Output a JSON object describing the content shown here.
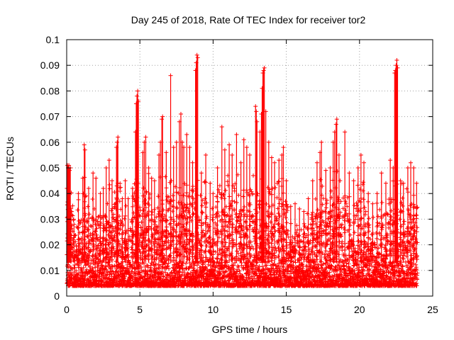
{
  "chart_data": {
    "type": "scatter",
    "title": "Day 245 of 2018, Rate Of TEC Index for receiver tor2",
    "xlabel": "GPS time / hours",
    "ylabel": "ROTI / TECUs",
    "xlim": [
      0,
      25
    ],
    "ylim": [
      0,
      0.1
    ],
    "xticks": [
      0,
      5,
      10,
      15,
      20,
      25
    ],
    "xtick_labels": [
      "0",
      "5",
      "10",
      "15",
      "20",
      "25"
    ],
    "yticks": [
      0,
      0.01,
      0.02,
      0.03,
      0.04,
      0.05,
      0.06,
      0.07,
      0.08,
      0.09,
      0.1
    ],
    "ytick_labels": [
      "0",
      "0.01",
      "0.02",
      "0.03",
      "0.04",
      "0.05",
      "0.06",
      "0.07",
      "0.08",
      "0.09",
      "0.1"
    ],
    "grid": true,
    "marker": "+",
    "color": "#ff0000",
    "series": [
      {
        "name": "ROTI",
        "points": [
          [
            0.05,
            0.051
          ],
          [
            0.1,
            0.05
          ],
          [
            0.15,
            0.051
          ],
          [
            0.2,
            0.049
          ],
          [
            0.25,
            0.05
          ],
          [
            0.3,
            0.033
          ],
          [
            0.5,
            0.028
          ],
          [
            0.8,
            0.04
          ],
          [
            1.1,
            0.046
          ],
          [
            1.2,
            0.059
          ],
          [
            1.25,
            0.057
          ],
          [
            1.5,
            0.042
          ],
          [
            1.8,
            0.048
          ],
          [
            2.0,
            0.046
          ],
          [
            2.3,
            0.04
          ],
          [
            2.5,
            0.042
          ],
          [
            2.7,
            0.05
          ],
          [
            2.9,
            0.053
          ],
          [
            3.1,
            0.045
          ],
          [
            3.4,
            0.058
          ],
          [
            3.45,
            0.06
          ],
          [
            3.5,
            0.062
          ],
          [
            3.8,
            0.038
          ],
          [
            4.0,
            0.045
          ],
          [
            4.2,
            0.038
          ],
          [
            4.5,
            0.042
          ],
          [
            4.7,
            0.064
          ],
          [
            4.75,
            0.075
          ],
          [
            4.8,
            0.078
          ],
          [
            4.85,
            0.08
          ],
          [
            4.9,
            0.076
          ],
          [
            5.2,
            0.056
          ],
          [
            5.3,
            0.06
          ],
          [
            5.4,
            0.062
          ],
          [
            5.6,
            0.05
          ],
          [
            5.8,
            0.046
          ],
          [
            6.0,
            0.045
          ],
          [
            6.3,
            0.055
          ],
          [
            6.4,
            0.06
          ],
          [
            6.5,
            0.069
          ],
          [
            6.55,
            0.07
          ],
          [
            6.8,
            0.056
          ],
          [
            7.1,
            0.086
          ],
          [
            7.3,
            0.058
          ],
          [
            7.5,
            0.06
          ],
          [
            7.7,
            0.068
          ],
          [
            7.8,
            0.071
          ],
          [
            7.9,
            0.06
          ],
          [
            8.0,
            0.058
          ],
          [
            8.2,
            0.063
          ],
          [
            8.4,
            0.058
          ],
          [
            8.6,
            0.052
          ],
          [
            8.8,
            0.088
          ],
          [
            8.85,
            0.091
          ],
          [
            8.9,
            0.094
          ],
          [
            8.95,
            0.093
          ],
          [
            9.2,
            0.048
          ],
          [
            9.5,
            0.055
          ],
          [
            9.8,
            0.044
          ],
          [
            10.0,
            0.04
          ],
          [
            10.3,
            0.05
          ],
          [
            10.6,
            0.066
          ],
          [
            10.8,
            0.057
          ],
          [
            11.1,
            0.059
          ],
          [
            11.3,
            0.055
          ],
          [
            11.6,
            0.063
          ],
          [
            11.9,
            0.052
          ],
          [
            12.1,
            0.061
          ],
          [
            12.3,
            0.058
          ],
          [
            12.5,
            0.055
          ],
          [
            12.9,
            0.074
          ],
          [
            12.95,
            0.072
          ],
          [
            13.0,
            0.068
          ],
          [
            13.2,
            0.064
          ],
          [
            13.3,
            0.071
          ],
          [
            13.35,
            0.081
          ],
          [
            13.4,
            0.087
          ],
          [
            13.45,
            0.088
          ],
          [
            13.5,
            0.089
          ],
          [
            13.6,
            0.072
          ],
          [
            13.8,
            0.06
          ],
          [
            14.0,
            0.054
          ],
          [
            14.2,
            0.052
          ],
          [
            14.5,
            0.053
          ],
          [
            14.7,
            0.055
          ],
          [
            14.8,
            0.058
          ],
          [
            15.0,
            0.045
          ],
          [
            15.3,
            0.035
          ],
          [
            15.6,
            0.036
          ],
          [
            15.9,
            0.034
          ],
          [
            16.2,
            0.033
          ],
          [
            16.5,
            0.038
          ],
          [
            16.8,
            0.045
          ],
          [
            17.1,
            0.052
          ],
          [
            17.3,
            0.056
          ],
          [
            17.4,
            0.06
          ],
          [
            17.7,
            0.049
          ],
          [
            18.0,
            0.05
          ],
          [
            18.2,
            0.06
          ],
          [
            18.3,
            0.064
          ],
          [
            18.4,
            0.067
          ],
          [
            18.45,
            0.069
          ],
          [
            18.6,
            0.055
          ],
          [
            19.0,
            0.064
          ],
          [
            19.3,
            0.048
          ],
          [
            19.6,
            0.045
          ],
          [
            19.9,
            0.05
          ],
          [
            20.1,
            0.055
          ],
          [
            20.3,
            0.052
          ],
          [
            20.6,
            0.04
          ],
          [
            20.9,
            0.036
          ],
          [
            21.2,
            0.04
          ],
          [
            21.5,
            0.048
          ],
          [
            21.8,
            0.044
          ],
          [
            22.1,
            0.053
          ],
          [
            22.3,
            0.05
          ],
          [
            22.4,
            0.087
          ],
          [
            22.45,
            0.088
          ],
          [
            22.5,
            0.09
          ],
          [
            22.55,
            0.092
          ],
          [
            22.6,
            0.089
          ],
          [
            22.8,
            0.045
          ],
          [
            23.0,
            0.044
          ],
          [
            23.3,
            0.05
          ],
          [
            23.5,
            0.052
          ],
          [
            23.7,
            0.05
          ],
          [
            23.9,
            0.044
          ]
        ]
      }
    ]
  }
}
